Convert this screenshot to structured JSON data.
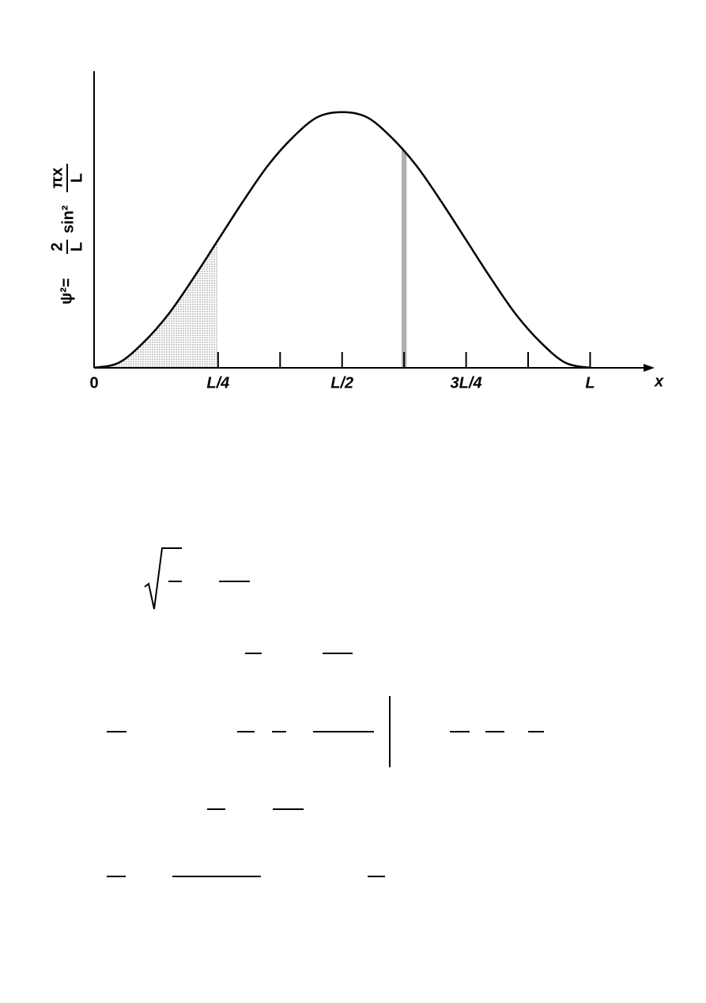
{
  "chart_data": {
    "type": "line",
    "ylabel": {
      "lhs": "ψ²=",
      "coef_num": "2",
      "coef_den": "L",
      "func": "sin²",
      "arg_num": "πx",
      "arg_den": "L"
    },
    "xlabel": "x",
    "x": [
      0,
      0.05,
      0.1,
      0.15,
      0.2,
      0.25,
      0.3,
      0.35,
      0.4,
      0.45,
      0.5,
      0.55,
      0.6,
      0.65,
      0.7,
      0.75,
      0.8,
      0.85,
      0.9,
      0.95,
      1
    ],
    "series": [
      {
        "color": "#000000",
        "values": [
          0,
          0.02,
          0.1,
          0.21,
          0.35,
          0.5,
          0.65,
          0.79,
          0.9,
          0.98,
          1,
          0.98,
          0.9,
          0.79,
          0.65,
          0.5,
          0.35,
          0.21,
          0.1,
          0.02,
          0
        ]
      }
    ],
    "shaded_intervals": [
      [
        0,
        0.25
      ],
      [
        0.62,
        0.63
      ]
    ],
    "shade_color": "#b0b0b0",
    "xlim": [
      0,
      1.13
    ],
    "ylim": [
      0,
      1.16
    ],
    "xticks": [
      0,
      {
        "value": 0.25,
        "label": "L/4"
      },
      {
        "value": 0.5,
        "label": "L/2"
      },
      {
        "value": 0.75,
        "label": "3L/4"
      },
      {
        "value": 1,
        "label": "L"
      }
    ],
    "minor_xticks": [
      0.375,
      0.625,
      0.875
    ]
  }
}
